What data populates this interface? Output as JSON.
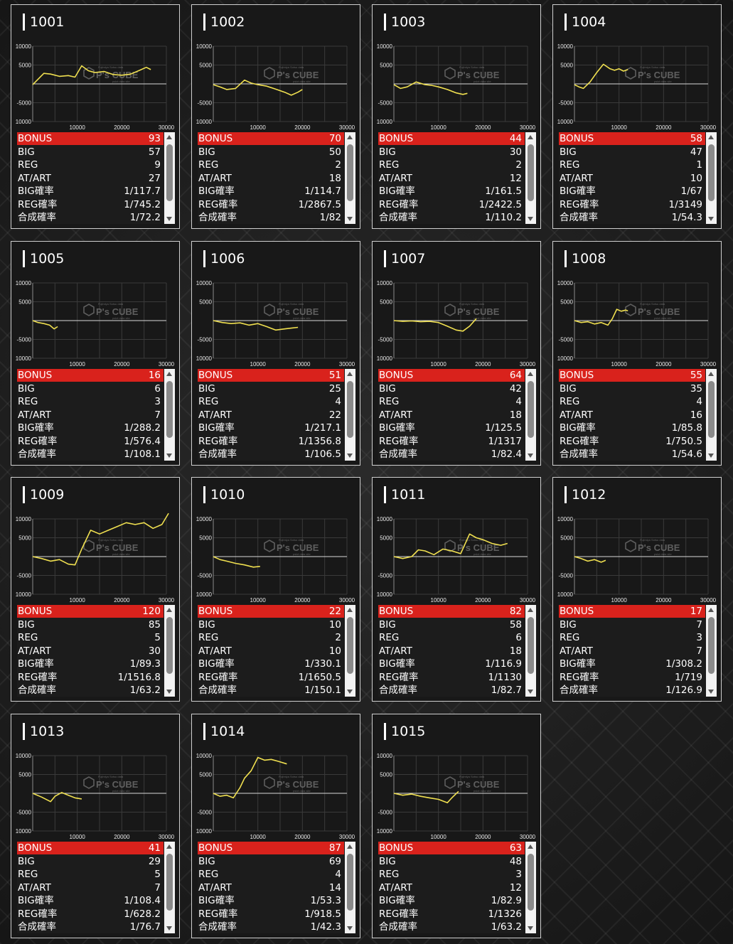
{
  "chart_axis": {
    "y_ticks": [
      "10000",
      "5000",
      "-5000",
      "-10000"
    ],
    "x_ticks": [
      "10000",
      "20000",
      "30000"
    ]
  },
  "watermark": {
    "main": "P's CUBE",
    "top": "Fujimiya Sotsu data",
    "bottom": "pslot data site"
  },
  "colors": {
    "line": "#f0e050",
    "bonus_bg": "#d9221c",
    "card_bg": "#181818",
    "card_border": "#cfcfcf"
  },
  "stat_labels": [
    "BONUS",
    "BIG",
    "REG",
    "AT/ART",
    "BIG確率",
    "REG確率",
    "合成確率"
  ],
  "chart_data": [
    {
      "type": "line",
      "title": "1001",
      "xlim": [
        0,
        30000
      ],
      "ylim": [
        -10000,
        10000
      ],
      "x": [
        0,
        1000,
        2500,
        4000,
        6000,
        8000,
        9500,
        11000,
        12500,
        14000,
        16000,
        18000,
        20000,
        22000,
        24000,
        25500,
        26500
      ],
      "y": [
        -200,
        1000,
        2800,
        2600,
        2000,
        2200,
        1800,
        4800,
        3500,
        3000,
        3300,
        2500,
        2300,
        2600,
        3600,
        4400,
        3800
      ]
    },
    {
      "type": "line",
      "title": "1002",
      "xlim": [
        0,
        30000
      ],
      "ylim": [
        -10000,
        10000
      ],
      "x": [
        0,
        1500,
        3000,
        5000,
        7000,
        8500,
        10000,
        12000,
        14000,
        16000,
        17500,
        19000,
        20000
      ],
      "y": [
        -200,
        -800,
        -1500,
        -1200,
        1000,
        200,
        -200,
        -600,
        -1400,
        -2200,
        -3000,
        -2200,
        -1500
      ]
    },
    {
      "type": "line",
      "title": "1003",
      "xlim": [
        0,
        30000
      ],
      "ylim": [
        -10000,
        10000
      ],
      "x": [
        0,
        1500,
        3000,
        5000,
        7000,
        8500,
        10000,
        12000,
        14000,
        15500,
        16500
      ],
      "y": [
        -200,
        -1200,
        -800,
        500,
        -200,
        -400,
        -800,
        -1500,
        -2400,
        -2800,
        -2500
      ]
    },
    {
      "type": "line",
      "title": "1004",
      "xlim": [
        0,
        30000
      ],
      "ylim": [
        -10000,
        10000
      ],
      "x": [
        0,
        1000,
        2000,
        3500,
        5000,
        6500,
        8000,
        9000,
        10000,
        11000,
        12000
      ],
      "y": [
        -200,
        -800,
        -1200,
        500,
        3000,
        5200,
        4000,
        3600,
        4000,
        3400,
        3800
      ]
    },
    {
      "type": "line",
      "title": "1005",
      "xlim": [
        0,
        30000
      ],
      "ylim": [
        -10000,
        10000
      ],
      "x": [
        0,
        1200,
        2500,
        3800,
        4800,
        5600
      ],
      "y": [
        0,
        -500,
        -800,
        -1200,
        -2200,
        -1600
      ]
    },
    {
      "type": "line",
      "title": "1006",
      "xlim": [
        0,
        30000
      ],
      "ylim": [
        -10000,
        10000
      ],
      "x": [
        0,
        2000,
        4000,
        6000,
        8000,
        10000,
        12000,
        14000,
        16000,
        17500,
        19000
      ],
      "y": [
        0,
        -500,
        -800,
        -600,
        -1200,
        -800,
        -1600,
        -2500,
        -2200,
        -2000,
        -1800
      ]
    },
    {
      "type": "line",
      "title": "1007",
      "xlim": [
        0,
        30000
      ],
      "ylim": [
        -10000,
        10000
      ],
      "x": [
        0,
        2000,
        4000,
        6000,
        8000,
        10000,
        12000,
        14000,
        15500,
        17000,
        18500
      ],
      "y": [
        0,
        -200,
        -100,
        -300,
        -200,
        -500,
        -1500,
        -2500,
        -2800,
        -1500,
        500
      ]
    },
    {
      "type": "line",
      "title": "1008",
      "xlim": [
        0,
        30000
      ],
      "ylim": [
        -10000,
        10000
      ],
      "x": [
        0,
        1500,
        3000,
        4500,
        6000,
        7500,
        8500,
        9500,
        10500,
        11500,
        12000
      ],
      "y": [
        0,
        -500,
        -300,
        -900,
        -500,
        -1200,
        500,
        3000,
        2500,
        2800,
        2600
      ]
    },
    {
      "type": "line",
      "title": "1009",
      "xlim": [
        0,
        30000
      ],
      "ylim": [
        -10000,
        10000
      ],
      "x": [
        0,
        2000,
        4000,
        6000,
        8000,
        9500,
        11000,
        13000,
        15000,
        17000,
        19000,
        21000,
        23000,
        25000,
        27000,
        29000,
        30500
      ],
      "y": [
        0,
        -500,
        -1200,
        -800,
        -2000,
        -2200,
        2000,
        7000,
        6000,
        7000,
        8000,
        9000,
        8500,
        9000,
        7500,
        8500,
        11500
      ]
    },
    {
      "type": "line",
      "title": "1010",
      "xlim": [
        0,
        30000
      ],
      "ylim": [
        -10000,
        10000
      ],
      "x": [
        0,
        1500,
        3000,
        5000,
        7000,
        9000,
        10500
      ],
      "y": [
        0,
        -800,
        -1200,
        -1800,
        -2200,
        -2800,
        -2600
      ]
    },
    {
      "type": "line",
      "title": "1011",
      "xlim": [
        0,
        30000
      ],
      "ylim": [
        -10000,
        10000
      ],
      "x": [
        0,
        2000,
        4000,
        5500,
        7000,
        9000,
        11000,
        13000,
        15000,
        17000,
        18500,
        20000,
        22000,
        24000,
        25500
      ],
      "y": [
        0,
        -500,
        0,
        1800,
        1500,
        500,
        2000,
        1500,
        800,
        6000,
        5000,
        4500,
        3500,
        3000,
        3500
      ]
    },
    {
      "type": "line",
      "title": "1012",
      "xlim": [
        0,
        30000
      ],
      "ylim": [
        -10000,
        10000
      ],
      "x": [
        0,
        1500,
        3000,
        4500,
        6000,
        7000
      ],
      "y": [
        0,
        -500,
        -1200,
        -800,
        -1500,
        -1000
      ]
    },
    {
      "type": "line",
      "title": "1013",
      "xlim": [
        0,
        30000
      ],
      "ylim": [
        -10000,
        10000
      ],
      "x": [
        0,
        2000,
        4000,
        5000,
        6500,
        8000,
        9500,
        11000
      ],
      "y": [
        0,
        -1000,
        -2200,
        -800,
        200,
        -500,
        -1200,
        -1500
      ]
    },
    {
      "type": "line",
      "title": "1014",
      "xlim": [
        0,
        30000
      ],
      "ylim": [
        -10000,
        10000
      ],
      "x": [
        0,
        1500,
        3000,
        4500,
        6000,
        7000,
        8500,
        10000,
        11500,
        13000,
        14500,
        16500
      ],
      "y": [
        0,
        -800,
        -500,
        -1200,
        1500,
        4000,
        6000,
        9500,
        8800,
        9000,
        8500,
        7800
      ]
    },
    {
      "type": "line",
      "title": "1015",
      "xlim": [
        0,
        30000
      ],
      "ylim": [
        -10000,
        10000
      ],
      "x": [
        0,
        2000,
        4000,
        6000,
        8000,
        10000,
        12000,
        13000,
        14500
      ],
      "y": [
        0,
        -500,
        -200,
        -800,
        -1200,
        -1600,
        -2500,
        -1200,
        500
      ]
    }
  ],
  "cards": [
    {
      "id": "1001",
      "bonus": "93",
      "big": "57",
      "reg": "9",
      "atart": "27",
      "big_rate": "1/117.7",
      "reg_rate": "1/745.2",
      "total_rate": "1/72.2"
    },
    {
      "id": "1002",
      "bonus": "70",
      "big": "50",
      "reg": "2",
      "atart": "18",
      "big_rate": "1/114.7",
      "reg_rate": "1/2867.5",
      "total_rate": "1/82"
    },
    {
      "id": "1003",
      "bonus": "44",
      "big": "30",
      "reg": "2",
      "atart": "12",
      "big_rate": "1/161.5",
      "reg_rate": "1/2422.5",
      "total_rate": "1/110.2"
    },
    {
      "id": "1004",
      "bonus": "58",
      "big": "47",
      "reg": "1",
      "atart": "10",
      "big_rate": "1/67",
      "reg_rate": "1/3149",
      "total_rate": "1/54.3"
    },
    {
      "id": "1005",
      "bonus": "16",
      "big": "6",
      "reg": "3",
      "atart": "7",
      "big_rate": "1/288.2",
      "reg_rate": "1/576.4",
      "total_rate": "1/108.1"
    },
    {
      "id": "1006",
      "bonus": "51",
      "big": "25",
      "reg": "4",
      "atart": "22",
      "big_rate": "1/217.1",
      "reg_rate": "1/1356.8",
      "total_rate": "1/106.5"
    },
    {
      "id": "1007",
      "bonus": "64",
      "big": "42",
      "reg": "4",
      "atart": "18",
      "big_rate": "1/125.5",
      "reg_rate": "1/1317",
      "total_rate": "1/82.4"
    },
    {
      "id": "1008",
      "bonus": "55",
      "big": "35",
      "reg": "4",
      "atart": "16",
      "big_rate": "1/85.8",
      "reg_rate": "1/750.5",
      "total_rate": "1/54.6"
    },
    {
      "id": "1009",
      "bonus": "120",
      "big": "85",
      "reg": "5",
      "atart": "30",
      "big_rate": "1/89.3",
      "reg_rate": "1/1516.8",
      "total_rate": "1/63.2"
    },
    {
      "id": "1010",
      "bonus": "22",
      "big": "10",
      "reg": "2",
      "atart": "10",
      "big_rate": "1/330.1",
      "reg_rate": "1/1650.5",
      "total_rate": "1/150.1"
    },
    {
      "id": "1011",
      "bonus": "82",
      "big": "58",
      "reg": "6",
      "atart": "18",
      "big_rate": "1/116.9",
      "reg_rate": "1/1130",
      "total_rate": "1/82.7"
    },
    {
      "id": "1012",
      "bonus": "17",
      "big": "7",
      "reg": "3",
      "atart": "7",
      "big_rate": "1/308.2",
      "reg_rate": "1/719",
      "total_rate": "1/126.9"
    },
    {
      "id": "1013",
      "bonus": "41",
      "big": "29",
      "reg": "5",
      "atart": "7",
      "big_rate": "1/108.4",
      "reg_rate": "1/628.2",
      "total_rate": "1/76.7"
    },
    {
      "id": "1014",
      "bonus": "87",
      "big": "69",
      "reg": "4",
      "atart": "14",
      "big_rate": "1/53.3",
      "reg_rate": "1/918.5",
      "total_rate": "1/42.3"
    },
    {
      "id": "1015",
      "bonus": "63",
      "big": "48",
      "reg": "3",
      "atart": "12",
      "big_rate": "1/82.9",
      "reg_rate": "1/1326",
      "total_rate": "1/63.2"
    }
  ]
}
